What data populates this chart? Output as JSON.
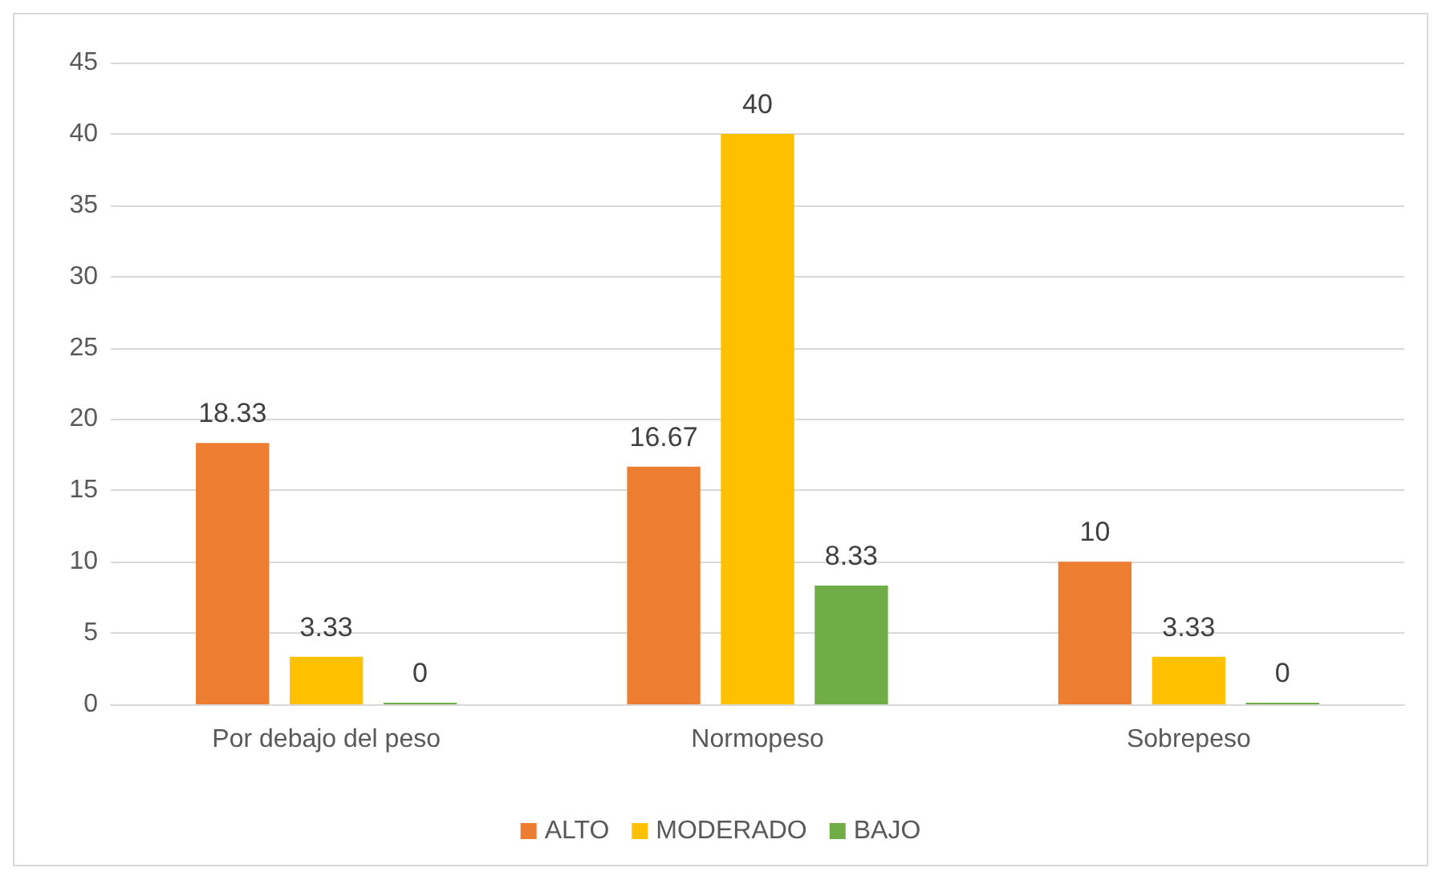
{
  "chart_data": {
    "type": "bar",
    "categories": [
      "Por debajo del peso",
      "Normopeso",
      "Sobrepeso"
    ],
    "series": [
      {
        "name": "ALTO",
        "color": "#ed7d31",
        "values": [
          18.33,
          16.67,
          10
        ]
      },
      {
        "name": "MODERADO",
        "color": "#ffc000",
        "values": [
          3.33,
          40,
          3.33
        ]
      },
      {
        "name": "BAJO",
        "color": "#70ad47",
        "values": [
          0,
          8.33,
          0
        ]
      }
    ],
    "ylim": [
      0,
      45
    ],
    "yticks": [
      0,
      5,
      10,
      15,
      20,
      25,
      30,
      35,
      40,
      45
    ],
    "grid": "y",
    "legend": "bottom",
    "data_labels": true
  }
}
